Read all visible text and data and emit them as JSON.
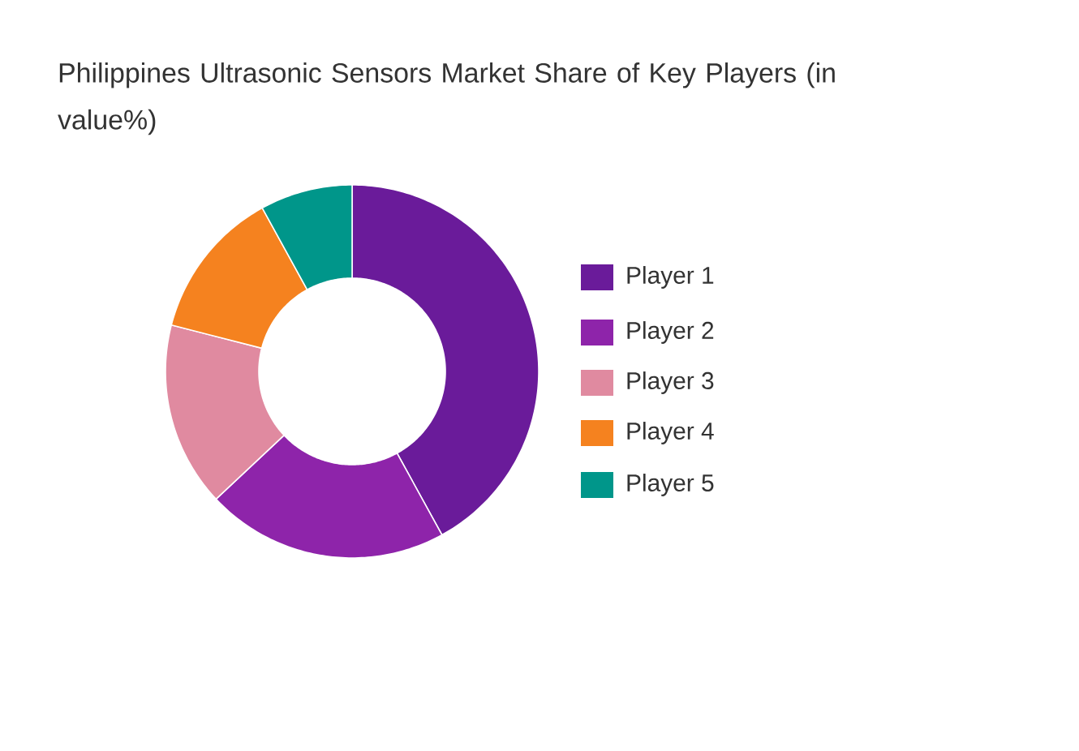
{
  "chart_data": {
    "type": "donut",
    "title": "Philippines Ultrasonic Sensors Market Share of Key Players (in value%)",
    "categories": [
      "Player 1",
      "Player 2",
      "Player 3",
      "Player 4",
      "Player 5"
    ],
    "values": [
      42,
      21,
      16,
      13,
      8
    ],
    "colors": [
      "#6a1b9a",
      "#8e24aa",
      "#e08aa0",
      "#f5821f",
      "#00968a"
    ],
    "legend": "right"
  }
}
